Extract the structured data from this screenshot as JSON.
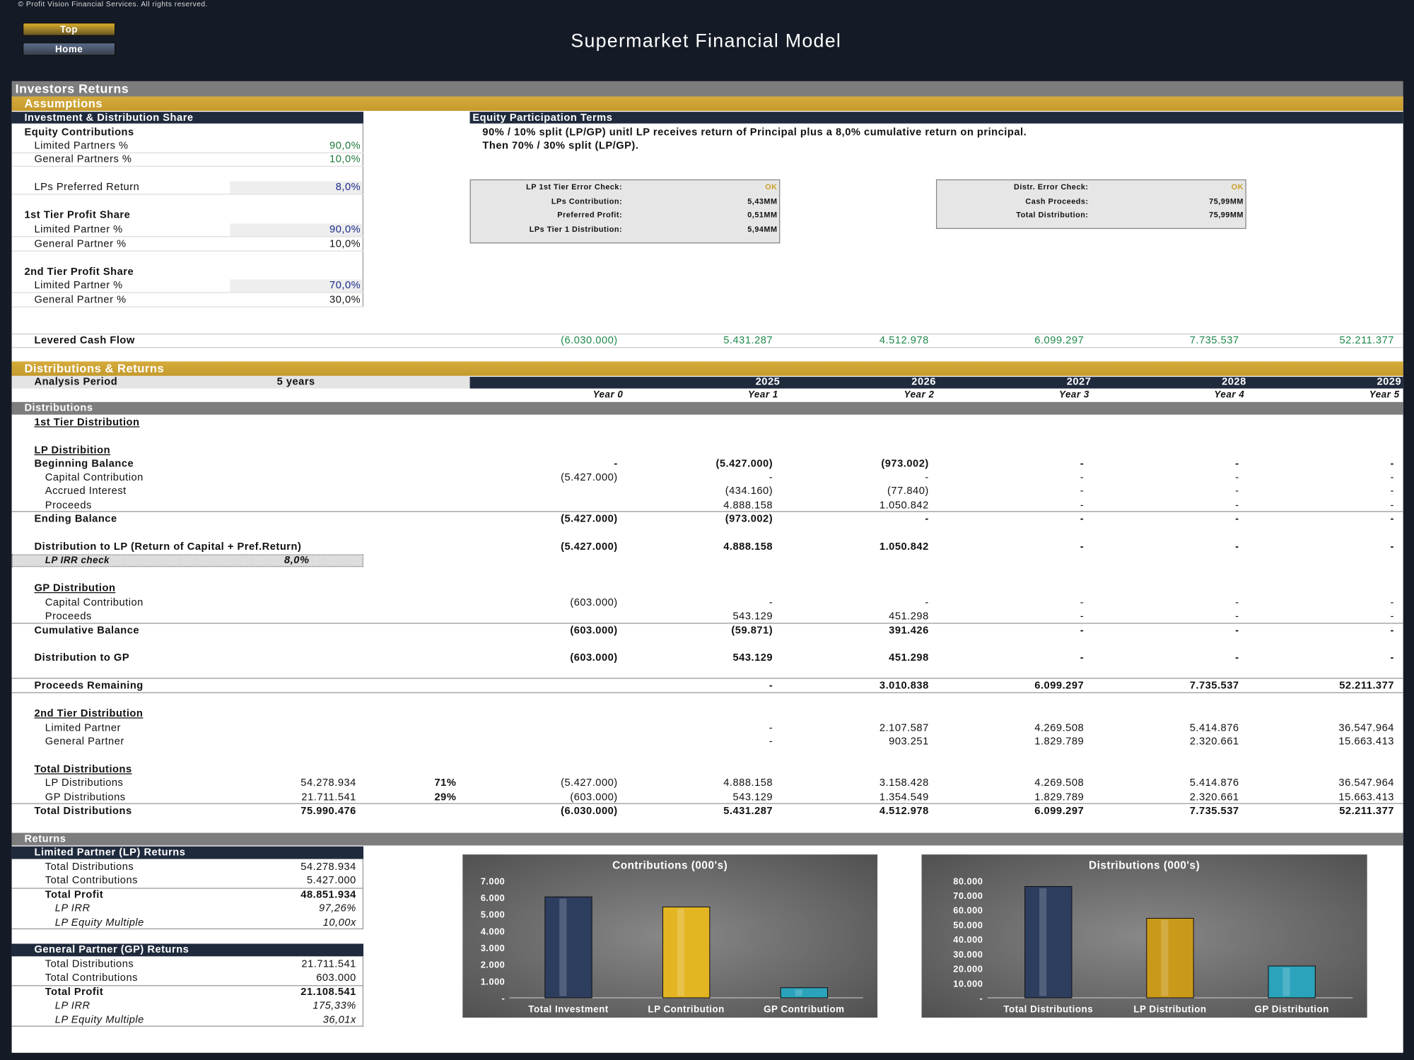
{
  "header": {
    "copyright": "© Profit Vision Financial Services. All rights reserved.",
    "buttons": [
      "Top",
      "Home"
    ],
    "title": "Supermarket Financial Model"
  },
  "section": {
    "title": "Investors Returns",
    "assumptions": "Assumptions"
  },
  "investment_share": {
    "heading": "Investment & Distribution Share",
    "rows": [
      [
        "Equity Contributions"
      ],
      [
        "Limited Partners %",
        "90,0%"
      ],
      [
        "General Partners %",
        "10,0%"
      ],
      [
        "LPs Preferred Return",
        "8,0%"
      ],
      [
        "1st Tier Profit Share"
      ],
      [
        "Limited Partner %",
        "90,0%"
      ],
      [
        "General Partner %",
        "10,0%"
      ],
      [
        "2nd Tier Profit Share"
      ],
      [
        "Limited Partner %",
        "70,0%"
      ],
      [
        "General Partner %",
        "30,0%"
      ]
    ]
  },
  "equity_terms": {
    "heading": "Equity Participation Terms",
    "lines": [
      "90% / 10% split (LP/GP) unitl LP receives return of Principal plus a 8,0% cumulative return on principal.",
      "Then 70% / 30% split (LP/GP)."
    ]
  },
  "checks": [
    {
      "rows": [
        [
          "LP 1st Tier Error Check:",
          "OK"
        ],
        [
          "LPs Contribution:",
          "5,43MM"
        ],
        [
          "Preferred Profit:",
          "0,51MM"
        ],
        [
          "LPs Tier 1 Distribution:",
          "5,94MM"
        ]
      ]
    },
    {
      "rows": [
        [
          "Distr. Error Check:",
          "OK"
        ],
        [
          "Cash Proceeds:",
          "75,99MM"
        ],
        [
          "Total Distribution:",
          "75,99MM"
        ]
      ]
    }
  ],
  "levered_cash_flow": {
    "label": "Levered Cash Flow",
    "values": [
      "(6.030.000)",
      "5.431.287",
      "4.512.978",
      "6.099.297",
      "7.735.537",
      "52.211.377"
    ]
  },
  "distributions": {
    "title": "Distributions & Returns",
    "analysis_period": {
      "label": "Analysis Period",
      "value": "5 years"
    },
    "years": [
      "2025",
      "2026",
      "2027",
      "2028",
      "2029"
    ],
    "periods": [
      "Year 0",
      "Year 1",
      "Year 2",
      "Year 3",
      "Year 4",
      "Year 5"
    ],
    "subheading": "Distributions",
    "rows": [
      {
        "label": "1st Tier Distribution"
      },
      {
        "label": "LP Distribition"
      },
      {
        "label": "Beginning Balance",
        "values": [
          "-",
          "(5.427.000)",
          "(973.002)",
          "-",
          "-",
          "-"
        ]
      },
      {
        "label": "Capital Contribution",
        "values": [
          "(5.427.000)",
          "-",
          "-",
          "-",
          "-",
          "-"
        ]
      },
      {
        "label": "Accrued Interest",
        "values": [
          null,
          "(434.160)",
          "(77.840)",
          "-",
          "-",
          "-"
        ]
      },
      {
        "label": "Proceeds",
        "values": [
          null,
          "4.888.158",
          "1.050.842",
          "-",
          "-",
          "-"
        ]
      },
      {
        "label": "Ending Balance",
        "values": [
          "(5.427.000)",
          "(973.002)",
          "-",
          "-",
          "-",
          "-"
        ]
      },
      {
        "label": "Distribution to LP (Return of Capital + Pref.Return)",
        "values": [
          "(5.427.000)",
          "4.888.158",
          "1.050.842",
          "-",
          "-",
          "-"
        ]
      },
      {
        "label": "LP IRR check",
        "total": "8,0%"
      },
      {
        "label": "GP Distribution"
      },
      {
        "label": "Capital Contribution",
        "values": [
          "(603.000)",
          "-",
          "-",
          "-",
          "-",
          "-"
        ]
      },
      {
        "label": "Proceeds",
        "values": [
          null,
          "543.129",
          "451.298",
          "-",
          "-",
          "-"
        ]
      },
      {
        "label": "Cumulative Balance",
        "values": [
          "(603.000)",
          "(59.871)",
          "391.426",
          "-",
          "-",
          "-"
        ]
      },
      {
        "label": "Distribution to GP",
        "values": [
          "(603.000)",
          "543.129",
          "451.298",
          "-",
          "-",
          "-"
        ]
      },
      {
        "label": "Proceeds Remaining",
        "values": [
          null,
          "-",
          "3.010.838",
          "6.099.297",
          "7.735.537",
          "52.211.377"
        ]
      },
      {
        "label": "2nd Tier Distribution"
      },
      {
        "label": "Limited Partner",
        "values": [
          null,
          "-",
          "2.107.587",
          "4.269.508",
          "5.414.876",
          "36.547.964"
        ]
      },
      {
        "label": "General Partner",
        "values": [
          null,
          "-",
          "903.251",
          "1.829.789",
          "2.320.661",
          "15.663.413"
        ]
      },
      {
        "label": "Total Distributions"
      },
      {
        "label": "LP Distributions",
        "total": "54.278.934",
        "share": "71%",
        "values": [
          "(5.427.000)",
          "4.888.158",
          "3.158.428",
          "4.269.508",
          "5.414.876",
          "36.547.964"
        ]
      },
      {
        "label": "GP Distributions",
        "total": "21.711.541",
        "share": "29%",
        "values": [
          "(603.000)",
          "543.129",
          "1.354.549",
          "1.829.789",
          "2.320.661",
          "15.663.413"
        ]
      },
      {
        "label": "Total Distributions",
        "total": "75.990.476",
        "values": [
          "(6.030.000)",
          "5.431.287",
          "4.512.978",
          "6.099.297",
          "7.735.537",
          "52.211.377"
        ]
      }
    ]
  },
  "returns": {
    "heading": "Returns",
    "lp": {
      "heading": "Limited Partner (LP) Returns",
      "rows": [
        [
          "Total Distributions",
          "54.278.934"
        ],
        [
          "Total Contributions",
          "5.427.000"
        ],
        [
          "Total Profit",
          "48.851.934"
        ],
        [
          "LP IRR",
          "97,26%"
        ],
        [
          "LP Equity Multiple",
          "10,00x"
        ]
      ]
    },
    "gp": {
      "heading": "General Partner (GP) Returns",
      "rows": [
        [
          "Total Distributions",
          "21.711.541"
        ],
        [
          "Total Contributions",
          "603.000"
        ],
        [
          "Total Profit",
          "21.108.541"
        ],
        [
          "LP IRR",
          "175,33%"
        ],
        [
          "LP Equity Multiple",
          "36,01x"
        ]
      ]
    }
  },
  "chart_data": [
    {
      "type": "bar",
      "title": "Contributions (000's)",
      "categories": [
        "Total Investment",
        "LP Contribution",
        "GP Contributiom"
      ],
      "values": [
        6030,
        5427,
        603
      ],
      "colors": [
        "#2c3d5e",
        "#e3b522",
        "#2aa3bb"
      ],
      "ylim": [
        0,
        7000
      ],
      "yticks": [
        {
          "value": 0,
          "label": "-"
        },
        {
          "value": 1000,
          "label": "1.000"
        },
        {
          "value": 2000,
          "label": "2.000"
        },
        {
          "value": 3000,
          "label": "3.000"
        },
        {
          "value": 4000,
          "label": "4.000"
        },
        {
          "value": 5000,
          "label": "5.000"
        },
        {
          "value": 6000,
          "label": "6.000"
        },
        {
          "value": 7000,
          "label": "7.000"
        }
      ]
    },
    {
      "type": "bar",
      "title": "Distributions (000's)",
      "categories": [
        "Total Distributions",
        "LP Distribution",
        "GP Distribution"
      ],
      "values": [
        75990,
        54279,
        21712
      ],
      "colors": [
        "#2c3d5e",
        "#c99a1a",
        "#2aa3bb"
      ],
      "ylim": [
        0,
        80000
      ],
      "yticks": [
        {
          "value": 0,
          "label": "-"
        },
        {
          "value": 10000,
          "label": "10.000"
        },
        {
          "value": 20000,
          "label": "20.000"
        },
        {
          "value": 30000,
          "label": "30.000"
        },
        {
          "value": 40000,
          "label": "40.000"
        },
        {
          "value": 50000,
          "label": "50.000"
        },
        {
          "value": 60000,
          "label": "60.000"
        },
        {
          "value": 70000,
          "label": "70.000"
        },
        {
          "value": 80000,
          "label": "80.000"
        }
      ]
    }
  ]
}
